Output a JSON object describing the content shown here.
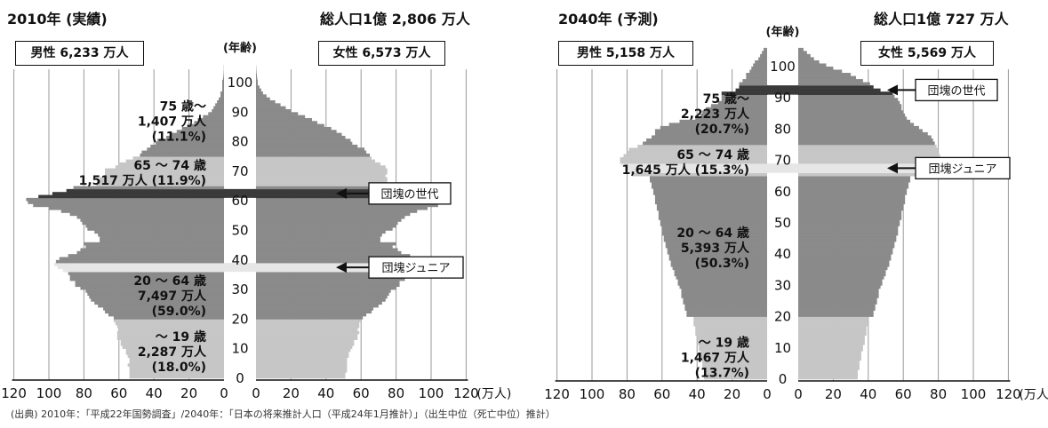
{
  "source_note": "(出典) 2010年：「平成22年国勢調査」/2040年：「日本の将来推計人口（平成24年1月推計）」（出生中位（死亡中位）推計）",
  "colors": {
    "young": "#c6c6c6",
    "working": "#8a8a8a",
    "elderly": "#c6c6c6",
    "old": "#8a8a8a",
    "baby_boomer": "#3a3a3a",
    "junior": "#e6e6e6",
    "axis": "#111111",
    "grid": "#999999"
  },
  "chart_data": [
    {
      "type": "bar",
      "orientation": "population-pyramid",
      "title": "2010年 (実績)",
      "total": "総人口1億 2,806 万人",
      "male_label": "男性 6,233 万人",
      "female_label": "女性 6,573 万人",
      "age_axis_label": "(年齢)",
      "age_ticks": [
        "0",
        "10",
        "20",
        "30",
        "40",
        "50",
        "60",
        "70",
        "80",
        "90",
        "100"
      ],
      "x_ticks": [
        "120",
        "100",
        "80",
        "60",
        "40",
        "20",
        "0",
        "0",
        "20",
        "40",
        "60",
        "80",
        "100",
        "120"
      ],
      "x_unit": "(万人)",
      "xlim": [
        0,
        120
      ],
      "ylim": [
        0,
        110
      ],
      "age_groups": [
        {
          "range": [
            0,
            19
          ],
          "lines": [
            "～ 19 歳",
            "2,287 万人",
            "(18.0%)"
          ]
        },
        {
          "range": [
            20,
            64
          ],
          "lines": [
            "20 ～ 64 歳",
            "7,497 万人",
            "(59.0%)"
          ]
        },
        {
          "range": [
            65,
            74
          ],
          "lines": [
            "65 ～ 74 歳",
            "1,517 万人 (11.9%)"
          ]
        },
        {
          "range": [
            75,
            105
          ],
          "lines": [
            "75 歳～",
            "1,407 万人",
            "(11.1%)"
          ]
        }
      ],
      "callouts": [
        {
          "label": "団塊の世代",
          "age": 62
        },
        {
          "label": "団塊ジュニア",
          "age": 37
        }
      ],
      "series": [
        {
          "name": "男性",
          "age_start": 0,
          "values": [
            54,
            54,
            54,
            54,
            55,
            54,
            54,
            55,
            56,
            56,
            58,
            59,
            59,
            61,
            61,
            61,
            60,
            61,
            62,
            63,
            63,
            66,
            68,
            69,
            72,
            74,
            76,
            77,
            78,
            79,
            82,
            85,
            85,
            88,
            88,
            89,
            92,
            95,
            97,
            96,
            94,
            89,
            84,
            82,
            79,
            80,
            71,
            71,
            72,
            74,
            78,
            79,
            81,
            82,
            84,
            88,
            93,
            100,
            109,
            112,
            113,
            106,
            98,
            90,
            86,
            73,
            71,
            71,
            68,
            68,
            68,
            62,
            60,
            56,
            52,
            48,
            47,
            44,
            42,
            39,
            38,
            33,
            30,
            27,
            24,
            21,
            17,
            15,
            12,
            9,
            7,
            6,
            5,
            4,
            3,
            2,
            2,
            1,
            1,
            1,
            1,
            0.5,
            0.3,
            0.2,
            0.1,
            0.1
          ]
        },
        {
          "name": "女性",
          "age_start": 0,
          "values": [
            51,
            51,
            52,
            52,
            52,
            52,
            52,
            53,
            53,
            54,
            55,
            56,
            56,
            58,
            58,
            59,
            58,
            59,
            59,
            60,
            61,
            63,
            66,
            67,
            70,
            72,
            74,
            75,
            76,
            77,
            80,
            82,
            82,
            85,
            86,
            87,
            90,
            93,
            95,
            94,
            93,
            88,
            83,
            81,
            78,
            80,
            71,
            71,
            72,
            74,
            78,
            80,
            81,
            83,
            85,
            88,
            92,
            98,
            104,
            106,
            107,
            101,
            96,
            90,
            87,
            76,
            75,
            75,
            74,
            75,
            75,
            74,
            71,
            68,
            66,
            65,
            63,
            62,
            58,
            55,
            54,
            51,
            49,
            46,
            43,
            39,
            35,
            32,
            28,
            24,
            20,
            17,
            14,
            11,
            8,
            6,
            4,
            3,
            2,
            1,
            1,
            0.7,
            0.5,
            0.3,
            0.2,
            0.1
          ]
        }
      ]
    },
    {
      "type": "bar",
      "orientation": "population-pyramid",
      "title": "2040年 (予測)",
      "total": "総人口1億 727 万人",
      "male_label": "男性 5,158 万人",
      "female_label": "女性 5,569 万人",
      "age_axis_label": "(年齢)",
      "age_ticks": [
        "0",
        "10",
        "20",
        "30",
        "40",
        "50",
        "60",
        "70",
        "80",
        "90",
        "100"
      ],
      "x_ticks": [
        "120",
        "100",
        "80",
        "60",
        "40",
        "20",
        "0",
        "0",
        "20",
        "40",
        "60",
        "80",
        "100",
        "120"
      ],
      "x_unit": "(万人)",
      "xlim": [
        0,
        120
      ],
      "ylim": [
        0,
        110
      ],
      "age_groups": [
        {
          "range": [
            0,
            19
          ],
          "lines": [
            "～ 19 歳",
            "1,467 万人",
            "(13.7%)"
          ]
        },
        {
          "range": [
            20,
            64
          ],
          "lines": [
            "20 ～ 64 歳",
            "5,393 万人",
            "(50.3%)"
          ]
        },
        {
          "range": [
            65,
            74
          ],
          "lines": [
            "65 ～ 74 歳",
            "1,645 万人 (15.3%)"
          ]
        },
        {
          "range": [
            75,
            105
          ],
          "lines": [
            "75 歳～",
            "2,223 万人",
            "(20.7%)"
          ]
        }
      ],
      "callouts": [
        {
          "label": "団塊の世代",
          "age": 92
        },
        {
          "label": "団塊ジュニア",
          "age": 67
        }
      ],
      "series": [
        {
          "name": "男性",
          "age_start": 0,
          "values": [
            36,
            36,
            36,
            37,
            37,
            37,
            38,
            38,
            38,
            39,
            39,
            40,
            40,
            40,
            41,
            41,
            41,
            42,
            42,
            42,
            46,
            46,
            47,
            47,
            48,
            48,
            49,
            49,
            49,
            50,
            51,
            51,
            52,
            53,
            53,
            54,
            55,
            55,
            56,
            56,
            57,
            57,
            58,
            58,
            59,
            59,
            60,
            60,
            60,
            61,
            61,
            62,
            62,
            62,
            63,
            63,
            64,
            64,
            64,
            65,
            65,
            66,
            66,
            67,
            67,
            77,
            79,
            81,
            83,
            84,
            84,
            82,
            80,
            79,
            74,
            71,
            69,
            66,
            64,
            64,
            61,
            56,
            50,
            41,
            38,
            37,
            35,
            32,
            28,
            26,
            26,
            26,
            18,
            16,
            16,
            14,
            12,
            12,
            10,
            9,
            8,
            7,
            5,
            4,
            3,
            2
          ]
        },
        {
          "name": "女性",
          "age_start": 0,
          "values": [
            34,
            34,
            34,
            35,
            35,
            35,
            36,
            36,
            36,
            37,
            37,
            38,
            38,
            38,
            39,
            39,
            39,
            40,
            40,
            40,
            43,
            43,
            44,
            44,
            45,
            45,
            46,
            46,
            46,
            47,
            48,
            48,
            49,
            50,
            50,
            51,
            52,
            52,
            53,
            53,
            54,
            54,
            55,
            55,
            56,
            56,
            57,
            57,
            57,
            58,
            58,
            59,
            59,
            59,
            60,
            60,
            61,
            61,
            61,
            62,
            62,
            63,
            63,
            64,
            64,
            72,
            75,
            77,
            79,
            81,
            82,
            81,
            80,
            80,
            79,
            78,
            77,
            76,
            74,
            71,
            69,
            66,
            64,
            62,
            61,
            60,
            59,
            59,
            58,
            57,
            55,
            54,
            47,
            43,
            41,
            37,
            33,
            30,
            25,
            20,
            16,
            12,
            9,
            7,
            5,
            3
          ]
        }
      ]
    }
  ]
}
